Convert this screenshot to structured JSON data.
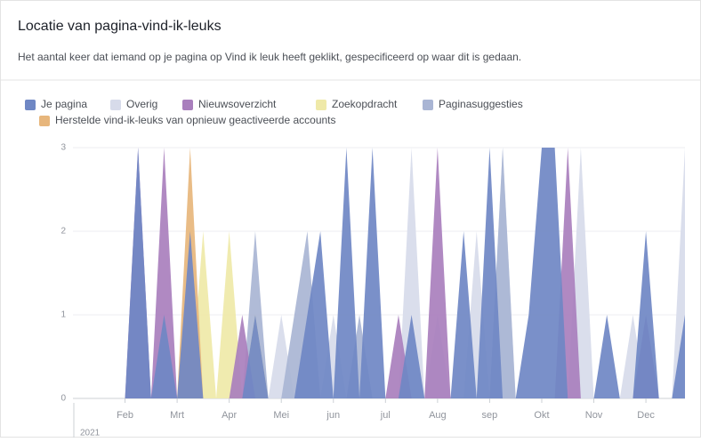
{
  "header": {
    "title": "Locatie van pagina-vind-ik-leuks",
    "subtitle": "Het aantal keer dat iemand op je pagina op Vind ik leuk heeft geklikt, gespecificeerd op waar dit is gedaan."
  },
  "chart_data": {
    "type": "area",
    "year_label": "2021",
    "categories": [
      null,
      null,
      null,
      null,
      "Feb",
      null,
      null,
      null,
      "Mrt",
      null,
      null,
      null,
      "Apr",
      null,
      null,
      null,
      "Mei",
      null,
      null,
      null,
      "jun",
      null,
      null,
      null,
      "jul",
      null,
      null,
      null,
      "Aug",
      null,
      null,
      null,
      "sep",
      null,
      null,
      null,
      "Okt",
      null,
      null,
      null,
      "Nov",
      null,
      null,
      null,
      "Dec",
      null,
      null,
      null
    ],
    "ylim": [
      0,
      3
    ],
    "yticks": [
      0,
      1,
      2,
      3
    ],
    "grid": true,
    "series": [
      {
        "name": "Je pagina",
        "color": "#6f87c4",
        "values": [
          0,
          0,
          0,
          0,
          0,
          3,
          0,
          1,
          0,
          2,
          0,
          0,
          0,
          0,
          1,
          0,
          0,
          0,
          1,
          2,
          0,
          3,
          0,
          3,
          0,
          0,
          1,
          0,
          0,
          0,
          2,
          0,
          3,
          0,
          0,
          1,
          3,
          3,
          0,
          0,
          0,
          1,
          0,
          0,
          2,
          0,
          0,
          1
        ]
      },
      {
        "name": "Overig",
        "color": "#d7dbea",
        "values": [
          0,
          0,
          0,
          0,
          0,
          2,
          0,
          0,
          0,
          0,
          0,
          0,
          0,
          0,
          0,
          0,
          1,
          0,
          0,
          0,
          1,
          0,
          0,
          0,
          0,
          0,
          3,
          0,
          1,
          0,
          0,
          2,
          0,
          3,
          0,
          0,
          0,
          0,
          0,
          3,
          0,
          0,
          0,
          1,
          0,
          0,
          0,
          3
        ]
      },
      {
        "name": "Nieuwsoverzicht",
        "color": "#a97fbd",
        "values": [
          0,
          0,
          0,
          0,
          0,
          3,
          0,
          3,
          0,
          0,
          0,
          0,
          0,
          1,
          0,
          0,
          0,
          0,
          0,
          0,
          0,
          0,
          0,
          0,
          0,
          1,
          0,
          0,
          3,
          0,
          0,
          0,
          0,
          0,
          0,
          0,
          0,
          0,
          3,
          0,
          0,
          0,
          0,
          0,
          1,
          0,
          0,
          0
        ]
      },
      {
        "name": "Zoekopdracht",
        "color": "#efe9a8",
        "values": [
          0,
          0,
          0,
          0,
          0,
          0,
          0,
          0,
          0,
          0,
          2,
          0,
          2,
          0,
          1,
          0,
          0,
          0,
          0,
          0,
          0,
          0,
          0,
          0,
          0,
          0,
          0,
          0,
          0,
          0,
          0,
          0,
          0,
          0,
          0,
          0,
          0,
          0,
          0,
          0,
          0,
          0,
          0,
          0,
          0,
          0,
          0,
          0
        ]
      },
      {
        "name": "Paginasuggesties",
        "color": "#a9b5d4",
        "values": [
          0,
          0,
          0,
          0,
          0,
          0,
          0,
          0,
          0,
          0,
          0,
          0,
          0,
          0,
          2,
          0,
          0,
          1,
          2,
          0,
          0,
          0,
          1,
          0,
          0,
          0,
          0,
          0,
          0,
          0,
          0,
          0,
          0,
          3,
          0,
          0,
          0,
          0,
          0,
          0,
          0,
          0,
          0,
          0,
          0,
          0,
          0,
          0
        ]
      },
      {
        "name": "Herstelde vind-ik-leuks van opnieuw geactiveerde accounts",
        "color": "#e7b67c",
        "values": [
          0,
          0,
          0,
          0,
          0,
          0,
          0,
          0,
          0,
          3,
          0,
          0,
          0,
          0,
          0,
          0,
          0,
          0,
          0,
          0,
          0,
          0,
          0,
          0,
          0,
          0,
          0,
          0,
          0,
          0,
          0,
          0,
          0,
          0,
          0,
          0,
          0,
          0,
          0,
          0,
          0,
          0,
          0,
          0,
          0,
          0,
          0,
          0
        ]
      }
    ]
  }
}
